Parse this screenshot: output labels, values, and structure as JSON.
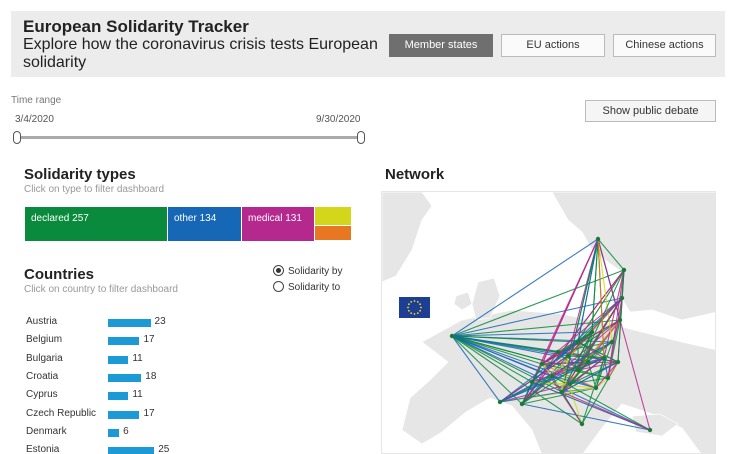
{
  "header": {
    "title": "European Solidarity Tracker",
    "subtitle": "Explore how the coronavirus crisis tests European solidarity",
    "tabs": [
      "Member states",
      "EU actions",
      "Chinese actions"
    ],
    "active_tab": "Member states"
  },
  "time_range": {
    "label": "Time range",
    "start": "3/4/2020",
    "end": "9/30/2020"
  },
  "debate_button": "Show public debate",
  "solidarity_types": {
    "title": "Solidarity types",
    "hint": "Click on type to filter dashboard",
    "segments": [
      {
        "label": "declared 257",
        "value": 257,
        "color": "#0a8a3c"
      },
      {
        "label": "other 134",
        "value": 134,
        "color": "#1667b5"
      },
      {
        "label": "medical 131",
        "value": 131,
        "color": "#b5288e"
      },
      {
        "label": "",
        "value": 60,
        "color": "#d4d61a"
      },
      {
        "label": "",
        "value": 50,
        "color": "#e87722"
      }
    ]
  },
  "countries": {
    "title": "Countries",
    "hint": "Click on country to filter dashboard",
    "radio_by": "Solidarity by",
    "radio_to": "Solidarity to",
    "selected": "Solidarity by",
    "rows": [
      {
        "name": "Austria",
        "value": 23
      },
      {
        "name": "Belgium",
        "value": 17
      },
      {
        "name": "Bulgaria",
        "value": 11
      },
      {
        "name": "Croatia",
        "value": 18
      },
      {
        "name": "Cyprus",
        "value": 11
      },
      {
        "name": "Czech Republic",
        "value": 17
      },
      {
        "name": "Denmark",
        "value": 6
      },
      {
        "name": "Estonia",
        "value": 25
      }
    ]
  },
  "network": {
    "title": "Network",
    "edge_colors": [
      "#0a8a3c",
      "#1667b5",
      "#b5288e",
      "#d4d61a",
      "#e87722"
    ]
  }
}
